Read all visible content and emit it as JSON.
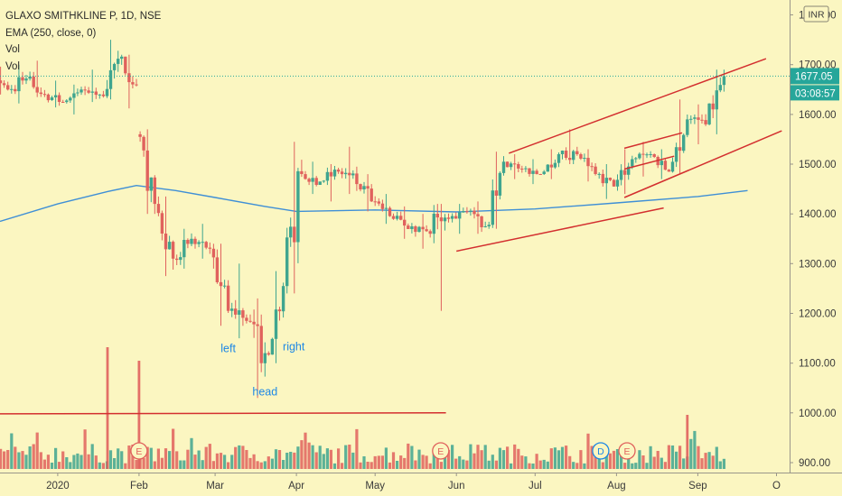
{
  "header": {
    "lines": [
      "GLAXO SMITHKLINE P, 1D, NSE",
      "EMA (250, close, 0)",
      "Vol",
      "Vol"
    ]
  },
  "currency_badge": "INR",
  "price_badges": {
    "last": "1677.05",
    "countdown": "03:08:57"
  },
  "colors": {
    "background": "#fbf6c1",
    "up": "#3fa58f",
    "down": "#e0625d",
    "ema": "#3f8fd6",
    "trendline": "#d32f2f",
    "badge": "#26a69a",
    "annotation": "#1e88e5"
  },
  "annotations": [
    {
      "text": "left",
      "date": "2020-03-06",
      "price": 1122
    },
    {
      "text": "head",
      "date": "2020-03-20",
      "price": 1035
    },
    {
      "text": "right",
      "date": "2020-03-31",
      "price": 1126
    }
  ],
  "event_markers": [
    {
      "text": "E",
      "date": "2020-02-01",
      "kind": "earnings"
    },
    {
      "text": "E",
      "date": "2020-05-26",
      "kind": "earnings"
    },
    {
      "text": "D",
      "date": "2020-07-26",
      "kind": "dividend"
    },
    {
      "text": "E",
      "date": "2020-08-05",
      "kind": "earnings"
    }
  ],
  "chart_data": {
    "type": "candlestick",
    "title": "GLAXO SMITHKLINE P, 1D, NSE",
    "y_axis": {
      "ticks": [
        1800,
        1700,
        1600,
        1500,
        1400,
        1300,
        1200,
        1100,
        1000,
        900
      ],
      "tick_labels": [
        "1800.00",
        "1700.00",
        "1600.00",
        "1500.00",
        "1400.00",
        "1300.00",
        "1200.00",
        "1100.00",
        "1000.00",
        "900.00"
      ],
      "ylim": [
        880,
        1830
      ]
    },
    "x_axis": {
      "tick_labels": [
        "2020",
        "Feb",
        "Mar",
        "Apr",
        "May",
        "Jun",
        "Jul",
        "Aug",
        "Sep",
        "O"
      ],
      "tick_dates": [
        "2020-01-01",
        "2020-02-01",
        "2020-03-01",
        "2020-04-01",
        "2020-05-01",
        "2020-06-01",
        "2020-07-01",
        "2020-08-01",
        "2020-09-01",
        "2020-10-01"
      ],
      "xlim": [
        "2019-12-10",
        "2020-10-06"
      ]
    },
    "last_price": 1677.05,
    "ema_250": [
      {
        "date": "2019-12-10",
        "value": 1385
      },
      {
        "date": "2020-01-01",
        "value": 1420
      },
      {
        "date": "2020-01-20",
        "value": 1445
      },
      {
        "date": "2020-01-31",
        "value": 1457
      },
      {
        "date": "2020-02-15",
        "value": 1447
      },
      {
        "date": "2020-03-01",
        "value": 1433
      },
      {
        "date": "2020-03-20",
        "value": 1415
      },
      {
        "date": "2020-04-01",
        "value": 1405
      },
      {
        "date": "2020-05-01",
        "value": 1408
      },
      {
        "date": "2020-06-01",
        "value": 1404
      },
      {
        "date": "2020-07-01",
        "value": 1410
      },
      {
        "date": "2020-08-01",
        "value": 1422
      },
      {
        "date": "2020-09-01",
        "value": 1435
      },
      {
        "date": "2020-09-20",
        "value": 1447
      }
    ],
    "trendlines": [
      {
        "from": {
          "date": "2020-06-01",
          "price": 1325
        },
        "to": {
          "date": "2020-08-19",
          "price": 1412
        }
      },
      {
        "from": {
          "date": "2020-06-21",
          "price": 1522
        },
        "to": {
          "date": "2020-09-27",
          "price": 1712
        }
      },
      {
        "from": {
          "date": "2020-08-04",
          "price": 1433
        },
        "to": {
          "date": "2020-10-03",
          "price": 1567
        }
      },
      {
        "from": {
          "date": "2020-08-04",
          "price": 1532
        },
        "to": {
          "date": "2020-08-26",
          "price": 1563
        }
      },
      {
        "from": {
          "date": "2020-08-04",
          "price": 1490
        },
        "to": {
          "date": "2020-08-23",
          "price": 1516
        }
      },
      {
        "from": {
          "date": "2019-12-10",
          "price": 998
        },
        "to": {
          "date": "2020-05-28",
          "price": 1000
        }
      }
    ],
    "candles": [
      {
        "date": "2019-12-13",
        "open": 1690,
        "high": 1696,
        "low": 1640,
        "close": 1650
      },
      {
        "date": "2019-12-20",
        "open": 1650,
        "high": 1700,
        "low": 1622,
        "close": 1672
      },
      {
        "date": "2019-12-27",
        "open": 1672,
        "high": 1708,
        "low": 1635,
        "close": 1640
      },
      {
        "date": "2020-01-03",
        "open": 1640,
        "high": 1668,
        "low": 1614,
        "close": 1625
      },
      {
        "date": "2020-01-10",
        "open": 1625,
        "high": 1660,
        "low": 1600,
        "close": 1650
      },
      {
        "date": "2020-01-17",
        "open": 1650,
        "high": 1690,
        "low": 1625,
        "close": 1640
      },
      {
        "date": "2020-01-24",
        "open": 1640,
        "high": 1750,
        "low": 1630,
        "close": 1712
      },
      {
        "date": "2020-01-31",
        "open": 1712,
        "high": 1720,
        "low": 1612,
        "close": 1660
      },
      {
        "date": "2020-02-07",
        "open": 1560,
        "high": 1570,
        "low": 1400,
        "close": 1420
      },
      {
        "date": "2020-02-14",
        "open": 1420,
        "high": 1435,
        "low": 1275,
        "close": 1310
      },
      {
        "date": "2020-02-21",
        "open": 1310,
        "high": 1370,
        "low": 1290,
        "close": 1350
      },
      {
        "date": "2020-02-28",
        "open": 1350,
        "high": 1380,
        "low": 1310,
        "close": 1330
      },
      {
        "date": "2020-03-06",
        "open": 1330,
        "high": 1340,
        "low": 1175,
        "close": 1205
      },
      {
        "date": "2020-03-13",
        "open": 1205,
        "high": 1300,
        "low": 1150,
        "close": 1185
      },
      {
        "date": "2020-03-20",
        "open": 1185,
        "high": 1230,
        "low": 1030,
        "close": 1120
      },
      {
        "date": "2020-03-27",
        "open": 1120,
        "high": 1285,
        "low": 1100,
        "close": 1255
      },
      {
        "date": "2020-04-03",
        "open": 1255,
        "high": 1545,
        "low": 1240,
        "close": 1480
      },
      {
        "date": "2020-04-10",
        "open": 1480,
        "high": 1505,
        "low": 1440,
        "close": 1465
      },
      {
        "date": "2020-04-17",
        "open": 1465,
        "high": 1500,
        "low": 1425,
        "close": 1485
      },
      {
        "date": "2020-04-24",
        "open": 1485,
        "high": 1535,
        "low": 1440,
        "close": 1460
      },
      {
        "date": "2020-05-01",
        "open": 1460,
        "high": 1480,
        "low": 1405,
        "close": 1425
      },
      {
        "date": "2020-05-08",
        "open": 1425,
        "high": 1440,
        "low": 1380,
        "close": 1390
      },
      {
        "date": "2020-05-15",
        "open": 1390,
        "high": 1415,
        "low": 1350,
        "close": 1375
      },
      {
        "date": "2020-05-22",
        "open": 1375,
        "high": 1400,
        "low": 1330,
        "close": 1360
      },
      {
        "date": "2020-05-29",
        "open": 1360,
        "high": 1420,
        "low": 1205,
        "close": 1390
      },
      {
        "date": "2020-06-05",
        "open": 1390,
        "high": 1420,
        "low": 1360,
        "close": 1405
      },
      {
        "date": "2020-06-12",
        "open": 1405,
        "high": 1425,
        "low": 1360,
        "close": 1375
      },
      {
        "date": "2020-06-19",
        "open": 1375,
        "high": 1525,
        "low": 1370,
        "close": 1505
      },
      {
        "date": "2020-06-26",
        "open": 1505,
        "high": 1520,
        "low": 1470,
        "close": 1490
      },
      {
        "date": "2020-07-03",
        "open": 1490,
        "high": 1510,
        "low": 1460,
        "close": 1480
      },
      {
        "date": "2020-07-10",
        "open": 1480,
        "high": 1530,
        "low": 1470,
        "close": 1520
      },
      {
        "date": "2020-07-17",
        "open": 1520,
        "high": 1570,
        "low": 1500,
        "close": 1520
      },
      {
        "date": "2020-07-24",
        "open": 1520,
        "high": 1530,
        "low": 1465,
        "close": 1480
      },
      {
        "date": "2020-07-31",
        "open": 1480,
        "high": 1500,
        "low": 1430,
        "close": 1455
      },
      {
        "date": "2020-08-07",
        "open": 1455,
        "high": 1530,
        "low": 1440,
        "close": 1510
      },
      {
        "date": "2020-08-14",
        "open": 1510,
        "high": 1545,
        "low": 1475,
        "close": 1520
      },
      {
        "date": "2020-08-21",
        "open": 1520,
        "high": 1530,
        "low": 1470,
        "close": 1485
      },
      {
        "date": "2020-08-28",
        "open": 1485,
        "high": 1630,
        "low": 1480,
        "close": 1590
      },
      {
        "date": "2020-09-04",
        "open": 1590,
        "high": 1620,
        "low": 1540,
        "close": 1580
      },
      {
        "date": "2020-09-11",
        "open": 1580,
        "high": 1690,
        "low": 1560,
        "close": 1677
      }
    ],
    "volume_spikes": [
      {
        "date": "2020-01-20",
        "height": 0.9
      },
      {
        "date": "2020-02-01",
        "height": 0.8
      },
      {
        "date": "2020-08-28",
        "height": 0.4
      }
    ]
  }
}
